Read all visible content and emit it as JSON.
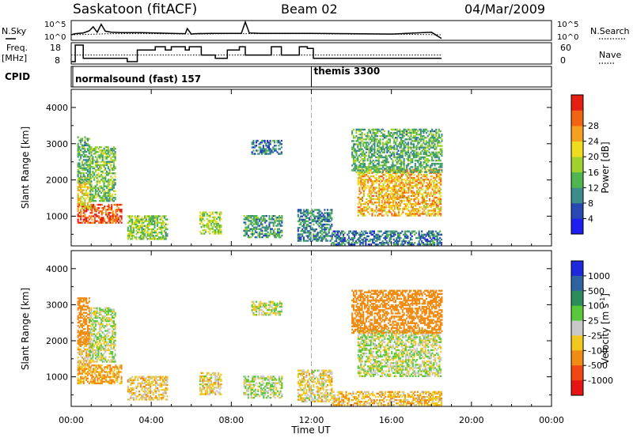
{
  "header": {
    "station": "Saskatoon (fitACF)",
    "beam": "Beam 02",
    "date": "04/Mar/2009"
  },
  "strip_labels": {
    "nsky": "N.Sky",
    "freq_line1": "Freq.",
    "freq_line2": "[MHz]",
    "cpid": "CPID",
    "nsearch": "N.Search",
    "nave": "Nave"
  },
  "strip_ticks": {
    "noise_left": [
      "10^5",
      "10^0"
    ],
    "noise_right": [
      "10^5",
      "10^0"
    ],
    "freq_left": [
      "18",
      "8"
    ],
    "nave_right": [
      "60",
      "0"
    ]
  },
  "cpid": [
    {
      "label": "normalsound (fast) 157",
      "start": "00:00"
    },
    {
      "label": "themis 3300",
      "start": "12:00"
    }
  ],
  "x_axis": {
    "label": "Time UT",
    "ticks": [
      "00:00",
      "04:00",
      "08:00",
      "12:00",
      "16:00",
      "20:00",
      "00:00"
    ]
  },
  "power_colorbar": {
    "label": "Power [dB]",
    "ticks": [
      "4",
      "8",
      "12",
      "16",
      "20",
      "24",
      "28"
    ],
    "colors": [
      "#1e1ef0",
      "#2848b4",
      "#3c8c8c",
      "#50b450",
      "#a0d22d",
      "#f0dc1e",
      "#f5a01e",
      "#f06414",
      "#e61e14"
    ]
  },
  "velocity_colorbar": {
    "label": "Velocity [m s",
    "label_sup": "-1",
    "label_end": "]",
    "ticks": [
      "1000",
      "500",
      "100",
      "25",
      "-25",
      "-100",
      "-500",
      "-1000"
    ],
    "colors": [
      "#1e28dc",
      "#2d64a0",
      "#2d8c5a",
      "#5ac83c",
      "#c8c8c8",
      "#f0c81e",
      "#f08c14",
      "#f04614",
      "#e61414"
    ]
  },
  "chart_data": [
    {
      "type": "line",
      "title": "N.Sky / N.Search",
      "x_unit": "hours UT",
      "xlim": [
        0,
        24
      ],
      "series": [
        {
          "name": "N.Sky",
          "x": [
            0,
            0.2,
            0.6,
            0.9,
            1.1,
            1.3,
            1.5,
            1.7,
            2.0,
            2.5,
            3.5,
            5.0,
            5.7,
            5.8,
            6.0,
            6.2,
            7.0,
            8.5,
            8.7,
            8.9,
            9.5,
            12.0,
            14.0,
            16.0,
            18.0,
            18.5
          ],
          "y": [
            1.3,
            1.6,
            1.8,
            2.4,
            3.5,
            2.0,
            4.2,
            2.3,
            2.0,
            1.9,
            1.9,
            1.7,
            1.6,
            3.0,
            1.5,
            1.6,
            1.7,
            1.7,
            4.8,
            1.8,
            1.7,
            1.7,
            1.6,
            1.5,
            2.0,
            0.3
          ]
        },
        {
          "name": "N.Search",
          "x": [
            0,
            2,
            4,
            6,
            8,
            10,
            12,
            14,
            16,
            18.5
          ],
          "y": [
            1.3,
            1.6,
            1.6,
            1.5,
            1.6,
            1.6,
            1.6,
            1.5,
            1.5,
            1.3
          ]
        }
      ],
      "ylim": [
        0,
        5
      ]
    },
    {
      "type": "line",
      "title": "Freq. / Nave",
      "x_unit": "hours UT",
      "xlim": [
        0,
        24
      ],
      "series": [
        {
          "name": "Freq. [MHz]",
          "x": [
            0,
            0.2,
            0.2,
            0.6,
            0.6,
            2.8,
            2.8,
            3.3,
            3.3,
            4.2,
            4.2,
            4.7,
            4.7,
            5.0,
            5.0,
            5.7,
            5.7,
            5.9,
            5.9,
            6.5,
            6.5,
            7.2,
            7.2,
            7.8,
            7.8,
            8.4,
            8.4,
            8.7,
            8.7,
            10.0,
            10.0,
            10.5,
            10.5,
            11.4,
            11.4,
            11.8,
            11.8,
            12.1,
            12.1,
            18.5
          ],
          "y": [
            8,
            8,
            18,
            18,
            10,
            10,
            8,
            8,
            15,
            15,
            17,
            17,
            15,
            15,
            17,
            17,
            15,
            15,
            17,
            17,
            12,
            12,
            10,
            10,
            15,
            15,
            17,
            17,
            12,
            12,
            17,
            17,
            12,
            12,
            17,
            17,
            16,
            16,
            10,
            10
          ]
        },
        {
          "name": "Nave",
          "x": [
            0,
            18.5
          ],
          "y": [
            26,
            26
          ]
        }
      ],
      "freq_ylim": [
        8,
        18
      ],
      "nave_ylim": [
        0,
        60
      ]
    },
    {
      "type": "heatmap",
      "title": "Power [dB]",
      "xlabel": "Time UT",
      "ylabel": "Slant Range [km]",
      "xlim": [
        0,
        24
      ],
      "ylim": [
        180,
        4500
      ],
      "y_ticks": [
        1000,
        2000,
        3000,
        4000
      ],
      "cmin": 0,
      "cmax": 32,
      "blobs": [
        {
          "t0": 0.3,
          "t1": 2.5,
          "r0": 800,
          "r1": 1300,
          "v": 27
        },
        {
          "t0": 0.3,
          "t1": 1.0,
          "r0": 1200,
          "r1": 2100,
          "v": 20
        },
        {
          "t0": 0.3,
          "t1": 0.9,
          "r0": 1900,
          "r1": 3200,
          "v": 12
        },
        {
          "t0": 0.9,
          "t1": 2.2,
          "r0": 1400,
          "r1": 2900,
          "v": 14
        },
        {
          "t0": 2.8,
          "t1": 4.8,
          "r0": 350,
          "r1": 1000,
          "v": 15
        },
        {
          "t0": 6.4,
          "t1": 7.5,
          "r0": 500,
          "r1": 1100,
          "v": 16
        },
        {
          "t0": 8.6,
          "t1": 10.5,
          "r0": 400,
          "r1": 1000,
          "v": 11
        },
        {
          "t0": 9.0,
          "t1": 10.5,
          "r0": 2700,
          "r1": 3100,
          "v": 8
        },
        {
          "t0": 11.3,
          "t1": 13.0,
          "r0": 300,
          "r1": 1200,
          "v": 9
        },
        {
          "t0": 13.0,
          "t1": 18.5,
          "r0": 200,
          "r1": 600,
          "v": 8
        },
        {
          "t0": 14.3,
          "t1": 18.5,
          "r0": 1000,
          "r1": 2300,
          "v": 22
        },
        {
          "t0": 14.0,
          "t1": 18.5,
          "r0": 2200,
          "r1": 3400,
          "v": 12
        }
      ]
    },
    {
      "type": "heatmap",
      "title": "Velocity [m s-1]",
      "xlabel": "Time UT",
      "ylabel": "Slant Range [km]",
      "xlim": [
        0,
        24
      ],
      "ylim": [
        180,
        4500
      ],
      "y_ticks": [
        1000,
        2000,
        3000,
        4000
      ],
      "blobs": [
        {
          "t0": 0.3,
          "t1": 2.5,
          "r0": 800,
          "r1": 1300,
          "v": -120
        },
        {
          "t0": 0.3,
          "t1": 1.0,
          "r0": 1200,
          "r1": 2100,
          "v": -60
        },
        {
          "t0": 0.3,
          "t1": 0.9,
          "r0": 1900,
          "r1": 3200,
          "v": -200
        },
        {
          "t0": 0.9,
          "t1": 2.2,
          "r0": 1400,
          "r1": 2900,
          "v": 5
        },
        {
          "t0": 2.8,
          "t1": 4.8,
          "r0": 350,
          "r1": 1000,
          "v": -60
        },
        {
          "t0": 6.4,
          "t1": 7.5,
          "r0": 500,
          "r1": 1100,
          "v": -40
        },
        {
          "t0": 8.6,
          "t1": 10.5,
          "r0": 400,
          "r1": 1000,
          "v": 10
        },
        {
          "t0": 9.0,
          "t1": 10.5,
          "r0": 2700,
          "r1": 3100,
          "v": 0
        },
        {
          "t0": 11.3,
          "t1": 13.0,
          "r0": 300,
          "r1": 1200,
          "v": -40
        },
        {
          "t0": 13.0,
          "t1": 18.5,
          "r0": 200,
          "r1": 600,
          "v": -80
        },
        {
          "t0": 14.3,
          "t1": 18.5,
          "r0": 1000,
          "r1": 2300,
          "v": 5
        },
        {
          "t0": 14.0,
          "t1": 18.5,
          "r0": 2200,
          "r1": 3400,
          "v": -300
        }
      ]
    }
  ]
}
